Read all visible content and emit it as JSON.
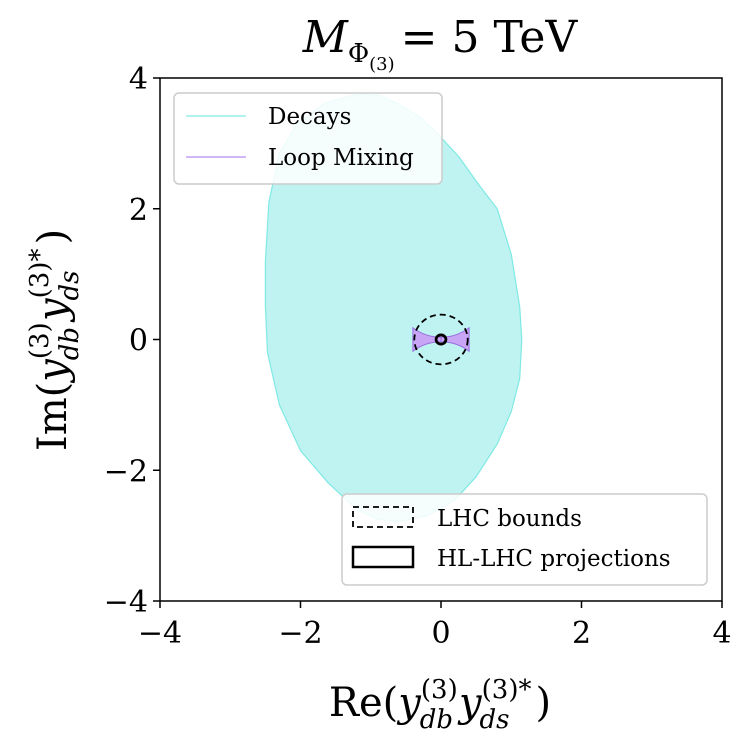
{
  "chart_data": {
    "type": "area",
    "title": {
      "main": "M",
      "subscript": "Φ",
      "subsubscript": "(3)",
      "equals": "= 5 TeV"
    },
    "xlabel": {
      "prefix": "Re(",
      "y1": "y",
      "y1_sup": "(3)",
      "y1_sub": "db",
      "y2": "y",
      "y2_sup": "(3)*",
      "y2_sub": "ds",
      "suffix": ")"
    },
    "ylabel": {
      "prefix": "Im(",
      "y1": "y",
      "y1_sup": "(3)",
      "y1_sub": "db",
      "y2": "y",
      "y2_sup": "(3)*",
      "y2_sub": "ds",
      "suffix": ")"
    },
    "xlim": [
      -4,
      4
    ],
    "ylim": [
      -4,
      4
    ],
    "xticks": [
      -4,
      -2,
      0,
      2,
      4
    ],
    "yticks": [
      -4,
      -2,
      0,
      2,
      4
    ],
    "xtick_labels": [
      "−4",
      "−2",
      "0",
      "2",
      "4"
    ],
    "ytick_labels": [
      "−4",
      "−2",
      "0",
      "2",
      "4"
    ],
    "grid": false,
    "colors": {
      "decays_fill": "#bff3f1",
      "decays_edge": "#7fe9e4",
      "loop_fill": "#c8a6f5",
      "loop_edge": "#9a6ee0",
      "lhc": "#000000",
      "hl_lhc": "#000000"
    },
    "series": [
      {
        "name": "Decays",
        "kind": "region",
        "boundary": [
          [
            -1.2,
            3.75
          ],
          [
            -0.9,
            3.74
          ],
          [
            -0.6,
            3.6
          ],
          [
            -0.3,
            3.4
          ],
          [
            -0.05,
            3.15
          ],
          [
            0.25,
            2.8
          ],
          [
            0.55,
            2.35
          ],
          [
            0.8,
            2.0
          ],
          [
            1.0,
            1.3
          ],
          [
            1.12,
            0.5
          ],
          [
            1.15,
            0.0
          ],
          [
            1.12,
            -0.6
          ],
          [
            1.0,
            -1.1
          ],
          [
            0.8,
            -1.6
          ],
          [
            0.5,
            -2.1
          ],
          [
            0.2,
            -2.45
          ],
          [
            -0.2,
            -2.7
          ],
          [
            -0.6,
            -2.78
          ],
          [
            -0.9,
            -2.75
          ],
          [
            -1.2,
            -2.6
          ],
          [
            -1.6,
            -2.2
          ],
          [
            -2.0,
            -1.7
          ],
          [
            -2.3,
            -1.0
          ],
          [
            -2.47,
            -0.2
          ],
          [
            -2.5,
            0.5
          ],
          [
            -2.5,
            1.2
          ],
          [
            -2.45,
            2.1
          ],
          [
            -2.3,
            2.85
          ],
          [
            -2.05,
            3.3
          ],
          [
            -1.65,
            3.62
          ]
        ]
      },
      {
        "name": "Loop Mixing",
        "kind": "region",
        "lobes": [
          {
            "center": [
              -0.2,
              0.0
            ],
            "half_width": 0.2,
            "half_height_center": 0.035,
            "half_height_edge": 0.18
          },
          {
            "center": [
              0.2,
              0.0
            ],
            "half_width": 0.2,
            "half_height_center": 0.035,
            "half_height_edge": 0.18
          }
        ]
      },
      {
        "name": "LHC bounds",
        "kind": "circle",
        "center": [
          0,
          0
        ],
        "radius": 0.38,
        "style": "dashed"
      },
      {
        "name": "HL-LHC projections",
        "kind": "circle",
        "center": [
          0,
          0
        ],
        "radius": 0.07,
        "style": "solid"
      }
    ],
    "legends": [
      {
        "placement": "top-left",
        "entries": [
          {
            "label": "Decays",
            "marker": "line",
            "color": "#7fe9e4"
          },
          {
            "label": "Loop Mixing",
            "marker": "line",
            "color": "#b48cf0"
          }
        ]
      },
      {
        "placement": "bottom-right",
        "entries": [
          {
            "label": "LHC bounds",
            "marker": "dashed-box"
          },
          {
            "label": "HL-LHC projections",
            "marker": "solid-box"
          }
        ]
      }
    ]
  }
}
